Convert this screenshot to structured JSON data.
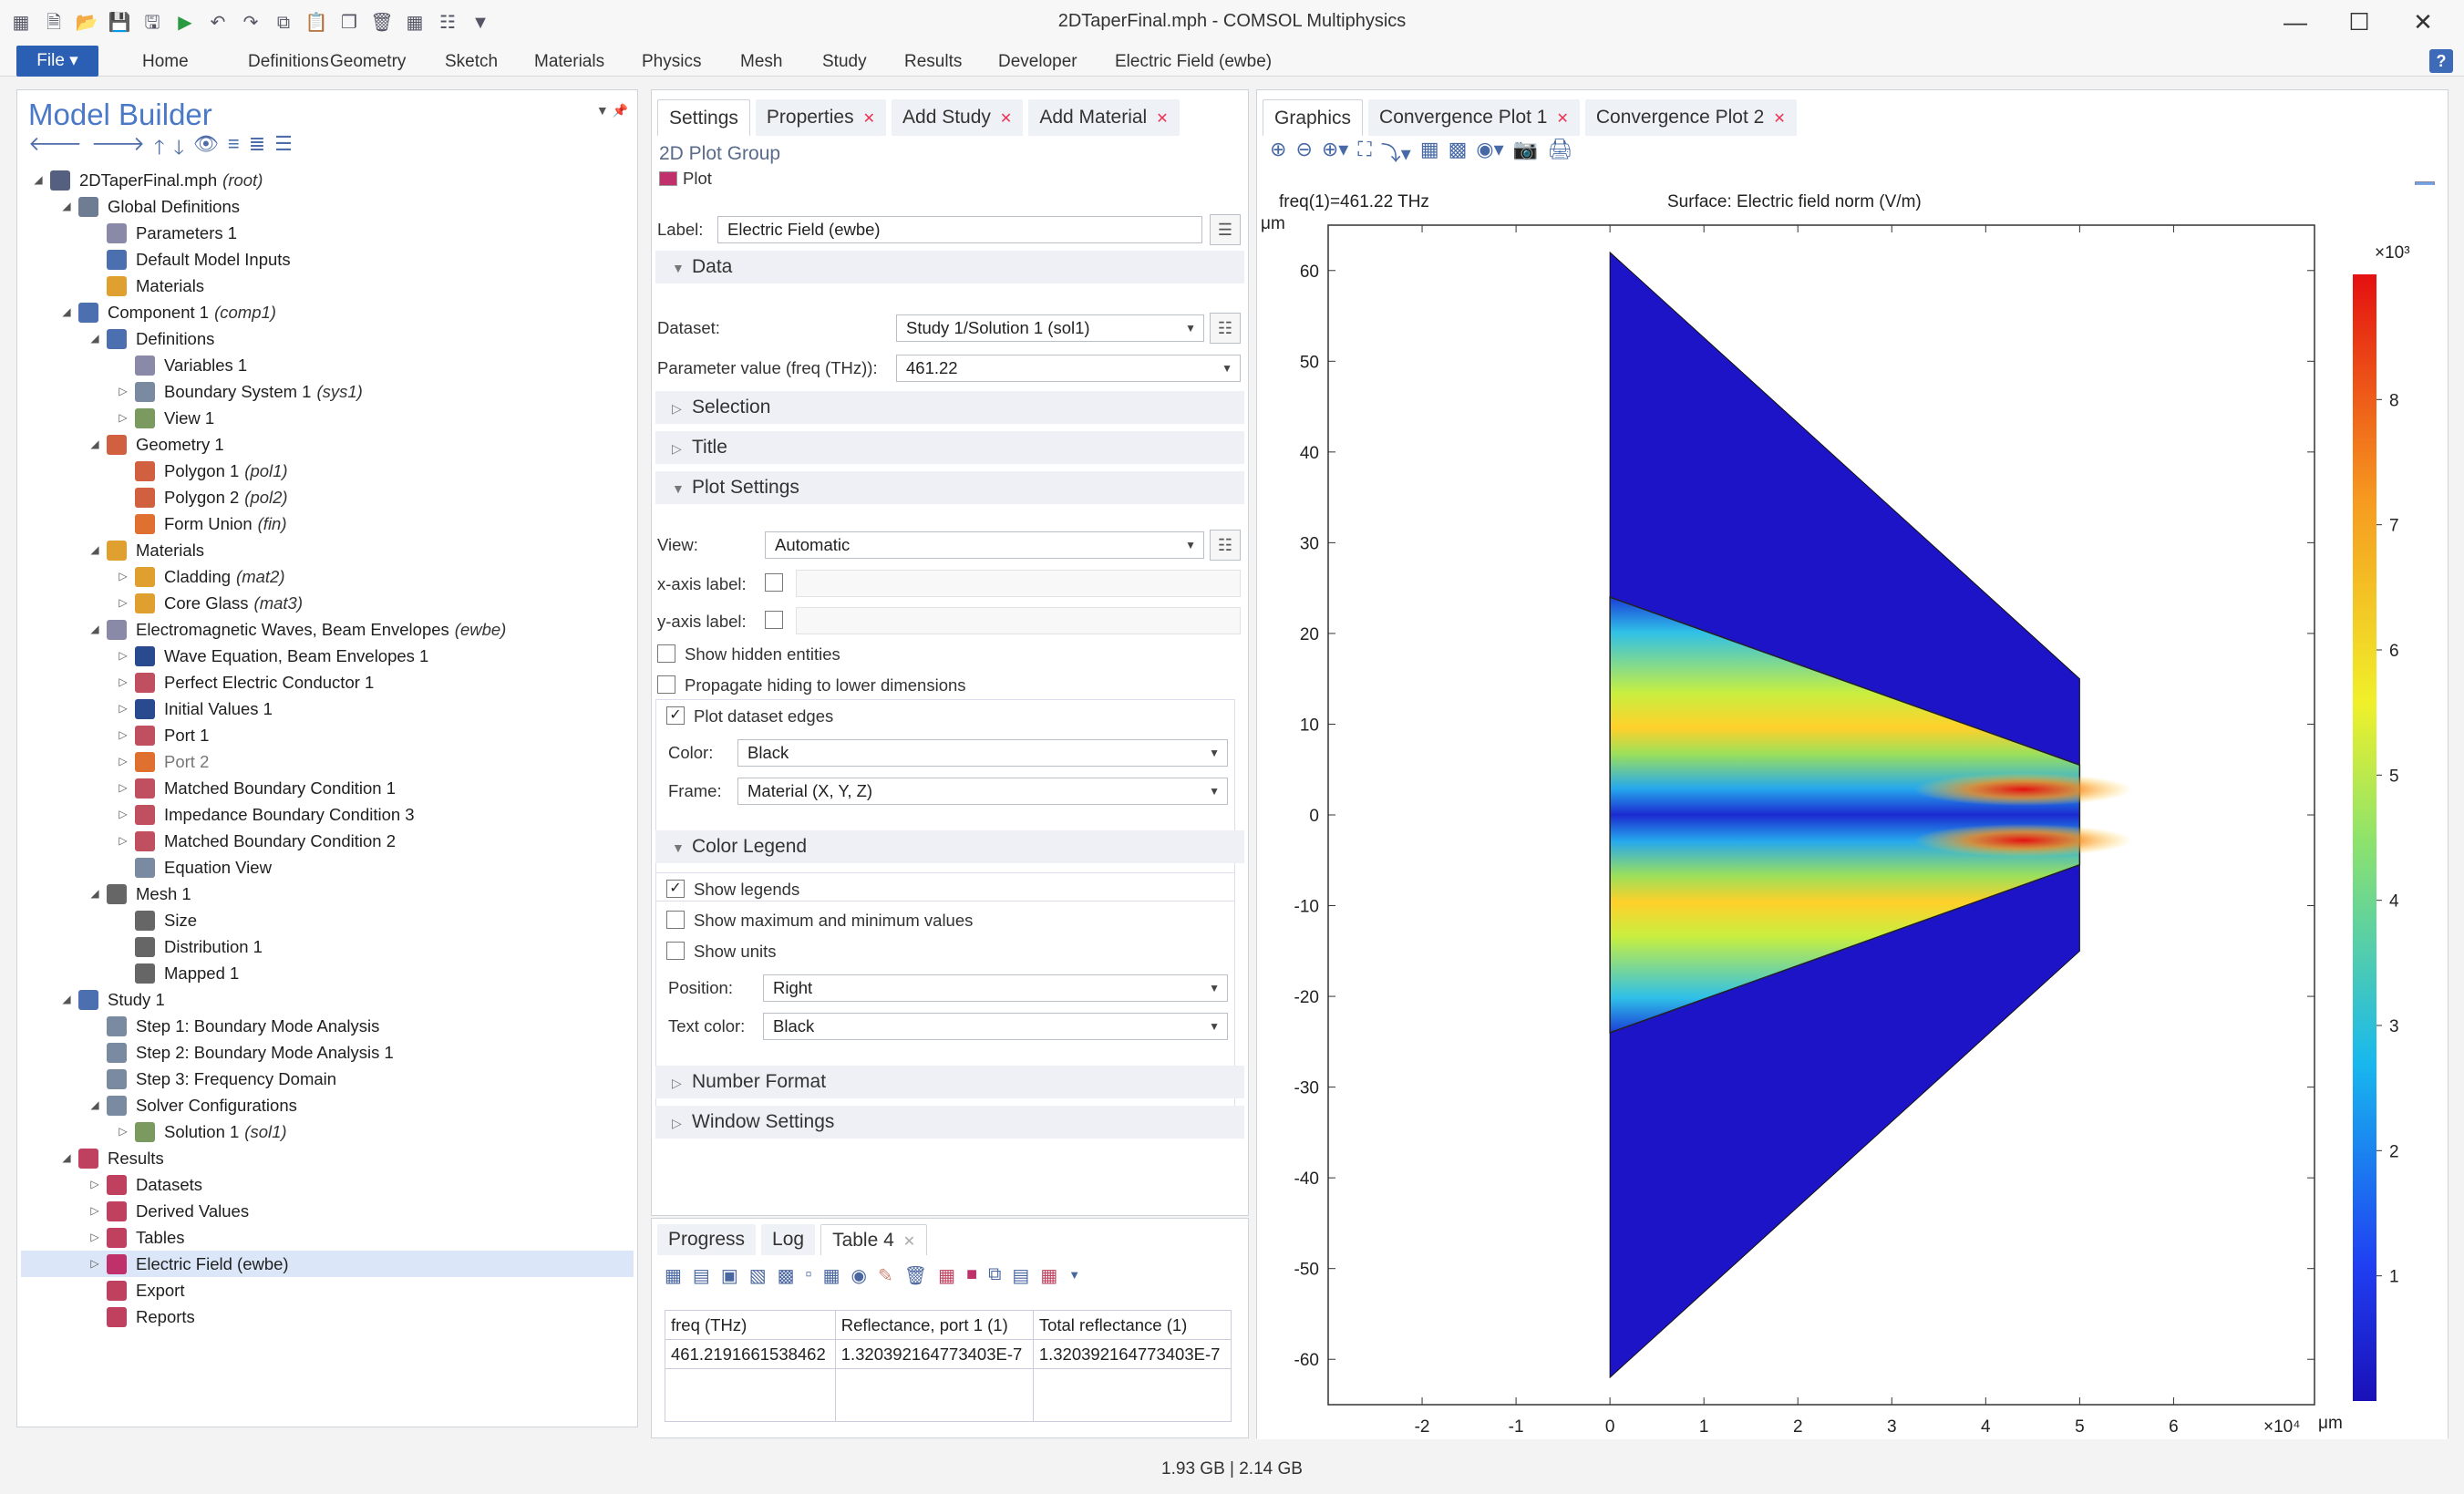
{
  "window": {
    "title": "2DTaperFinal.mph - COMSOL Multiphysics",
    "minimize": "—",
    "maximize": "☐",
    "close": "✕"
  },
  "ribbon": {
    "file": "File ▾",
    "tabs": [
      "Home",
      "Definitions",
      "Geometry",
      "Sketch",
      "Materials",
      "Physics",
      "Mesh",
      "Study",
      "Results",
      "Developer",
      "Electric Field (ewbe)"
    ],
    "help": "?"
  },
  "model_builder": {
    "title": "Model Builder",
    "tree": [
      {
        "label": "2DTaperFinal.mph",
        "tag": "(root)",
        "depth": 0,
        "exp": "◢",
        "icon": "model-icon",
        "color": "#556080"
      },
      {
        "label": "Global Definitions",
        "tag": "",
        "depth": 1,
        "exp": "◢",
        "icon": "globe-icon",
        "color": "#6f7d93"
      },
      {
        "label": "Parameters 1",
        "tag": "",
        "depth": 2,
        "exp": "",
        "icon": "parameters-icon",
        "color": "#8a8aa8"
      },
      {
        "label": "Default Model Inputs",
        "tag": "",
        "depth": 2,
        "exp": "",
        "icon": "model-inputs-icon",
        "color": "#4c6fb0"
      },
      {
        "label": "Materials",
        "tag": "",
        "depth": 2,
        "exp": "",
        "icon": "materials-icon",
        "color": "#e0a030"
      },
      {
        "label": "Component 1",
        "tag": "(comp1)",
        "depth": 1,
        "exp": "◢",
        "icon": "component-icon",
        "color": "#4c6fb0"
      },
      {
        "label": "Definitions",
        "tag": "",
        "depth": 2,
        "exp": "◢",
        "icon": "definitions-icon",
        "color": "#4c6fb0"
      },
      {
        "label": "Variables 1",
        "tag": "",
        "depth": 3,
        "exp": "",
        "icon": "variables-icon",
        "color": "#8a8aa8"
      },
      {
        "label": "Boundary System 1",
        "tag": "(sys1)",
        "depth": 3,
        "exp": "▷",
        "icon": "boundary-system-icon",
        "color": "#7a8aa0"
      },
      {
        "label": "View 1",
        "tag": "",
        "depth": 3,
        "exp": "▷",
        "icon": "view-icon",
        "color": "#7a9a60"
      },
      {
        "label": "Geometry 1",
        "tag": "",
        "depth": 2,
        "exp": "◢",
        "icon": "geometry-icon",
        "color": "#d06040"
      },
      {
        "label": "Polygon 1",
        "tag": "(pol1)",
        "depth": 3,
        "exp": "",
        "icon": "polygon-icon",
        "color": "#d06040"
      },
      {
        "label": "Polygon 2",
        "tag": "(pol2)",
        "depth": 3,
        "exp": "",
        "icon": "polygon-icon",
        "color": "#d06040"
      },
      {
        "label": "Form Union",
        "tag": "(fin)",
        "depth": 3,
        "exp": "",
        "icon": "form-union-icon",
        "color": "#e07030"
      },
      {
        "label": "Materials",
        "tag": "",
        "depth": 2,
        "exp": "◢",
        "icon": "materials-icon",
        "color": "#e0a030"
      },
      {
        "label": "Cladding",
        "tag": "(mat2)",
        "depth": 3,
        "exp": "▷",
        "icon": "material-icon",
        "color": "#e0a030"
      },
      {
        "label": "Core Glass",
        "tag": "(mat3)",
        "depth": 3,
        "exp": "▷",
        "icon": "material-icon",
        "color": "#e0a030"
      },
      {
        "label": "Electromagnetic Waves, Beam Envelopes",
        "tag": "(ewbe)",
        "depth": 2,
        "exp": "◢",
        "icon": "ewbe-icon",
        "color": "#8a8aa8"
      },
      {
        "label": "Wave Equation, Beam Envelopes 1",
        "tag": "",
        "depth": 3,
        "exp": "▷",
        "icon": "wave-equation-icon",
        "color": "#2a4a90"
      },
      {
        "label": "Perfect Electric Conductor 1",
        "tag": "",
        "depth": 3,
        "exp": "▷",
        "icon": "boundary-icon",
        "color": "#c05060"
      },
      {
        "label": "Initial Values 1",
        "tag": "",
        "depth": 3,
        "exp": "▷",
        "icon": "initial-values-icon",
        "color": "#2a4a90"
      },
      {
        "label": "Port 1",
        "tag": "",
        "depth": 3,
        "exp": "▷",
        "icon": "port-icon",
        "color": "#c05060"
      },
      {
        "label": "Port 2",
        "tag": "",
        "depth": 3,
        "exp": "▷",
        "icon": "port-warning-icon",
        "color": "#e07030",
        "muted": true
      },
      {
        "label": "Matched Boundary Condition 1",
        "tag": "",
        "depth": 3,
        "exp": "▷",
        "icon": "boundary-icon",
        "color": "#c05060"
      },
      {
        "label": "Impedance Boundary Condition 3",
        "tag": "",
        "depth": 3,
        "exp": "▷",
        "icon": "boundary-icon",
        "color": "#c05060"
      },
      {
        "label": "Matched Boundary Condition 2",
        "tag": "",
        "depth": 3,
        "exp": "▷",
        "icon": "boundary-icon",
        "color": "#c05060"
      },
      {
        "label": "Equation View",
        "tag": "",
        "depth": 3,
        "exp": "",
        "icon": "equation-view-icon",
        "color": "#7a8aa0"
      },
      {
        "label": "Mesh 1",
        "tag": "",
        "depth": 2,
        "exp": "◢",
        "icon": "mesh-icon",
        "color": "#666"
      },
      {
        "label": "Size",
        "tag": "",
        "depth": 3,
        "exp": "",
        "icon": "mesh-size-icon",
        "color": "#666"
      },
      {
        "label": "Distribution 1",
        "tag": "",
        "depth": 3,
        "exp": "",
        "icon": "distribution-icon",
        "color": "#666"
      },
      {
        "label": "Mapped 1",
        "tag": "",
        "depth": 3,
        "exp": "",
        "icon": "mapped-icon",
        "color": "#666"
      },
      {
        "label": "Study 1",
        "tag": "",
        "depth": 1,
        "exp": "◢",
        "icon": "study-icon",
        "color": "#4c6fb0"
      },
      {
        "label": "Step 1: Boundary Mode Analysis",
        "tag": "",
        "depth": 2,
        "exp": "",
        "icon": "study-step-icon",
        "color": "#7a8aa0"
      },
      {
        "label": "Step 2: Boundary Mode Analysis 1",
        "tag": "",
        "depth": 2,
        "exp": "",
        "icon": "study-step-icon",
        "color": "#7a8aa0"
      },
      {
        "label": "Step 3: Frequency Domain",
        "tag": "",
        "depth": 2,
        "exp": "",
        "icon": "frequency-domain-icon",
        "color": "#7a8aa0"
      },
      {
        "label": "Solver Configurations",
        "tag": "",
        "depth": 2,
        "exp": "◢",
        "icon": "solver-icon",
        "color": "#7a8aa0"
      },
      {
        "label": "Solution 1",
        "tag": "(sol1)",
        "depth": 3,
        "exp": "▷",
        "icon": "solution-icon",
        "color": "#7a9a60"
      },
      {
        "label": "Results",
        "tag": "",
        "depth": 1,
        "exp": "◢",
        "icon": "results-icon",
        "color": "#c04060"
      },
      {
        "label": "Datasets",
        "tag": "",
        "depth": 2,
        "exp": "▷",
        "icon": "datasets-icon",
        "color": "#c04060"
      },
      {
        "label": "Derived Values",
        "tag": "",
        "depth": 2,
        "exp": "▷",
        "icon": "derived-values-icon",
        "color": "#c04060"
      },
      {
        "label": "Tables",
        "tag": "",
        "depth": 2,
        "exp": "▷",
        "icon": "tables-icon",
        "color": "#c04060"
      },
      {
        "label": "Electric Field (ewbe)",
        "tag": "",
        "depth": 2,
        "exp": "▷",
        "icon": "plot-group-icon",
        "color": "#c0306a",
        "selected": true
      },
      {
        "label": "Export",
        "tag": "",
        "depth": 2,
        "exp": "",
        "icon": "export-icon",
        "color": "#c04060"
      },
      {
        "label": "Reports",
        "tag": "",
        "depth": 2,
        "exp": "",
        "icon": "reports-icon",
        "color": "#c04060"
      }
    ]
  },
  "settings": {
    "tabs": [
      {
        "label": "Settings",
        "close": false
      },
      {
        "label": "Properties",
        "close": true
      },
      {
        "label": "Add Study",
        "close": true
      },
      {
        "label": "Add Material",
        "close": true
      }
    ],
    "group": "2D Plot Group",
    "plot_button": "Plot",
    "label_caption": "Label:",
    "label_value": "Electric Field (ewbe)",
    "sections": {
      "data": "Data",
      "selection": "Selection",
      "title": "Title",
      "plot_settings": "Plot Settings",
      "color_legend": "Color Legend",
      "number_format": "Number Format",
      "window_settings": "Window Settings"
    },
    "dataset_caption": "Dataset:",
    "dataset_value": "Study 1/Solution 1 (sol1)",
    "param_caption": "Parameter value (freq (THz)):",
    "param_value": "461.22",
    "view_caption": "View:",
    "view_value": "Automatic",
    "xaxis_caption": "x-axis label:",
    "yaxis_caption": "y-axis label:",
    "show_hidden": "Show hidden entities",
    "propagate": "Propagate hiding to lower dimensions",
    "plot_edges": "Plot dataset edges",
    "color_caption": "Color:",
    "color_value": "Black",
    "frame_caption": "Frame:",
    "frame_value": "Material  (X, Y, Z)",
    "show_legends": "Show legends",
    "show_maxmin": "Show maximum and minimum values",
    "show_units": "Show units",
    "position_caption": "Position:",
    "position_value": "Right",
    "textcolor_caption": "Text color:",
    "textcolor_value": "Black"
  },
  "progress": {
    "tabs": [
      "Progress",
      "Log",
      "Table 4"
    ],
    "headers": [
      "freq (THz)",
      "Reflectance, port 1 (1)",
      "Total reflectance (1)"
    ],
    "rows": [
      [
        "461.2191661538462",
        "1.320392164773403E-7",
        "1.320392164773403E-7"
      ]
    ]
  },
  "graphics": {
    "tabs": [
      "Graphics",
      "Convergence Plot 1",
      "Convergence Plot 2"
    ],
    "freq_label": "freq(1)=461.22 THz",
    "surface_label": "Surface: Electric field norm (V/m)",
    "unit": "μm",
    "legend_exp": "×10³",
    "xaxis_exp": "×10⁴"
  },
  "chart_data": {
    "type": "heatmap",
    "title": "Surface: Electric field norm (V/m)",
    "subtitle": "freq(1)=461.22 THz",
    "xlabel": "μm",
    "ylabel": "μm",
    "xlim": [
      -3,
      7.5
    ],
    "ylim": [
      -65,
      65
    ],
    "xticks": [
      -2,
      -1,
      0,
      1,
      2,
      3,
      4,
      5,
      6
    ],
    "yticks": [
      60,
      50,
      40,
      30,
      20,
      10,
      0,
      -10,
      -20,
      -30,
      -40,
      -50,
      -60
    ],
    "x_scale": "×10^4",
    "colorbar": {
      "min": 0,
      "max": 9,
      "scale": "×10^3",
      "ticks": [
        8,
        7,
        6,
        5,
        4,
        3,
        2,
        1
      ]
    },
    "domain_outer": [
      [
        0,
        62
      ],
      [
        5,
        15
      ],
      [
        5,
        -15
      ],
      [
        0,
        -62
      ]
    ],
    "domain_core": [
      [
        0,
        24
      ],
      [
        5,
        5.5
      ],
      [
        5,
        -5.5
      ],
      [
        0,
        -24
      ]
    ]
  },
  "status": "1.93 GB | 2.14 GB"
}
